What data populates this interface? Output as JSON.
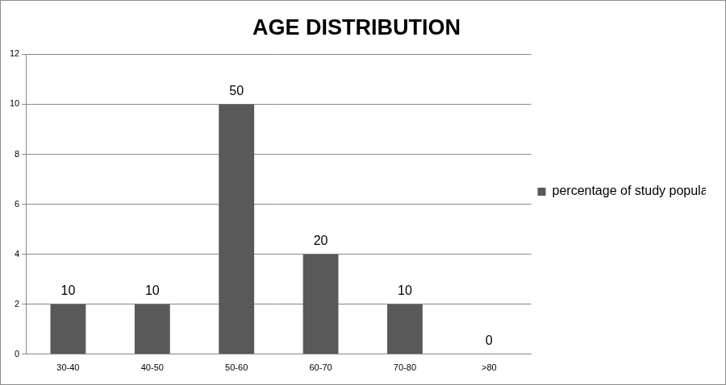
{
  "chart_data": {
    "type": "bar",
    "title": "AGE DISTRIBUTION",
    "categories": [
      "30-40",
      "40-50",
      "50-60",
      "60-70",
      "70-80",
      ">80"
    ],
    "series": [
      {
        "name": "percentage of study population",
        "color": "#595959",
        "values": [
          2,
          2,
          10,
          4,
          2,
          0
        ],
        "percentages": [
          10,
          10,
          50,
          20,
          10,
          0
        ]
      }
    ],
    "ylim": [
      0,
      12
    ],
    "yticks": [
      0,
      2,
      4,
      6,
      8,
      10,
      12
    ],
    "grid": true,
    "legend": "right"
  }
}
